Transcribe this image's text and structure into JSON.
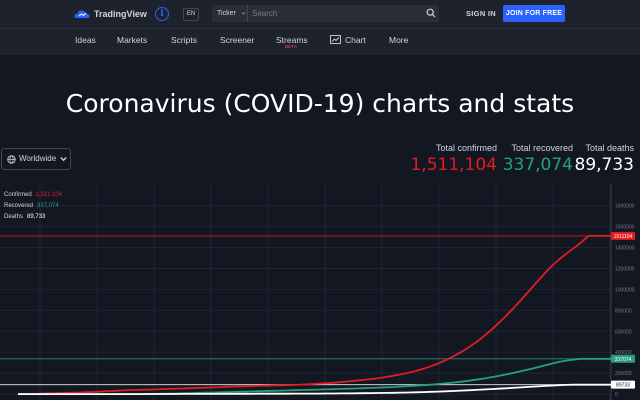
{
  "header": {
    "logo_text": "TradingView",
    "lang": "EN",
    "ticker_label": "Ticker",
    "search_placeholder": "Search",
    "sign_in": "SIGN IN",
    "join": "JOIN FOR FREE"
  },
  "nav": {
    "items": [
      "Ideas",
      "Markets",
      "Scripts",
      "Screener",
      "Streams",
      "Chart",
      "More"
    ],
    "streams_badge": "BETA"
  },
  "page_title": "Coronavirus (COVID-19) charts and stats",
  "region_select": "Worldwide",
  "stats": {
    "confirmed": {
      "label": "Total confirmed",
      "value": "1,511,104",
      "color": "#e31b23"
    },
    "recovered": {
      "label": "Total recovered",
      "value": "337,074",
      "color": "#26a17b"
    },
    "deaths": {
      "label": "Total deaths",
      "value": "89,733",
      "color": "#ffffff"
    }
  },
  "legend": [
    {
      "name": "Confirmed",
      "value": "1,511,104",
      "color": "#e31b23"
    },
    {
      "name": "Recovered",
      "value": "337,074",
      "color": "#26a17b"
    },
    {
      "name": "Deaths",
      "value": "89,733",
      "color": "#ffffff"
    }
  ],
  "chart_data": {
    "type": "line",
    "x": [
      1,
      2,
      3,
      4,
      5,
      6,
      7,
      8,
      9,
      10,
      11,
      12,
      13,
      14,
      15,
      16,
      17,
      18,
      19,
      20,
      21,
      22,
      23,
      24,
      25,
      26,
      27,
      28,
      29,
      30,
      31,
      32,
      33,
      34,
      35,
      36,
      37,
      38,
      39,
      40,
      41,
      42,
      43,
      44,
      45,
      46,
      47,
      48,
      49,
      50,
      51,
      52,
      53,
      54,
      55,
      56,
      57,
      58,
      59,
      60,
      61,
      62,
      63,
      64,
      65,
      66,
      67,
      68,
      69,
      70,
      71,
      72,
      73,
      74,
      75,
      76,
      77,
      78,
      79,
      80
    ],
    "series": [
      {
        "name": "Confirmed",
        "color": "#e31b23",
        "values": [
          0,
          500,
          2000,
          4000,
          6000,
          8000,
          10000,
          12000,
          14000,
          17000,
          20000,
          24000,
          28000,
          31000,
          35000,
          38000,
          40000,
          42000,
          44000,
          47000,
          49000,
          51000,
          53000,
          56000,
          59000,
          61000,
          64000,
          67000,
          70000,
          72000,
          74000,
          76000,
          78000,
          80000,
          82000,
          84000,
          86000,
          88000,
          91000,
          95000,
          99000,
          103000,
          108000,
          114000,
          121000,
          128000,
          135000,
          143000,
          152000,
          163000,
          175000,
          188000,
          203000,
          220000,
          241000,
          265000,
          293000,
          325000,
          360000,
          400000,
          445000,
          494000,
          549000,
          610000,
          676000,
          746000,
          820000,
          898000,
          979000,
          1060000,
          1140000,
          1215000,
          1282000,
          1340000,
          1393000,
          1447000,
          1511104,
          1511104,
          1511104,
          1511104
        ]
      },
      {
        "name": "Recovered",
        "color": "#26a17b",
        "values": [
          0,
          0,
          0,
          0,
          0,
          0,
          0,
          0,
          0,
          0,
          0,
          0,
          0,
          0,
          0,
          0,
          0,
          1000,
          2000,
          3000,
          4000,
          5000,
          7000,
          9000,
          11000,
          13000,
          15000,
          17000,
          19000,
          21000,
          23000,
          25000,
          27000,
          29000,
          31000,
          33000,
          35000,
          37000,
          39000,
          41000,
          43000,
          45000,
          47000,
          49000,
          51000,
          53000,
          56000,
          59000,
          62000,
          65000,
          68000,
          72000,
          76000,
          80000,
          85000,
          90000,
          96000,
          103000,
          110000,
          118000,
          127000,
          137000,
          148000,
          160000,
          173000,
          187000,
          202000,
          218000,
          235000,
          252000,
          270000,
          288000,
          306000,
          320000,
          329000,
          337074,
          337074,
          337074,
          337074,
          337074
        ]
      },
      {
        "name": "Deaths",
        "color": "#ffffff",
        "values": [
          0,
          0,
          0,
          0,
          0,
          0,
          0,
          0,
          0,
          0,
          0,
          0,
          0,
          0,
          0,
          0,
          100,
          200,
          400,
          600,
          800,
          1000,
          1200,
          1400,
          1600,
          1800,
          2000,
          2200,
          2400,
          2600,
          2800,
          3000,
          3200,
          3400,
          3500,
          3700,
          3900,
          4100,
          4300,
          4500,
          4800,
          5100,
          5500,
          6000,
          6600,
          7300,
          8100,
          9000,
          10000,
          11000,
          12300,
          13700,
          15300,
          17000,
          19000,
          21300,
          23800,
          26500,
          29500,
          32700,
          36000,
          39700,
          43500,
          47500,
          51500,
          55600,
          59800,
          64000,
          68300,
          72600,
          76800,
          80800,
          84300,
          87200,
          89733,
          89733,
          89733,
          89733,
          89733,
          89733
        ]
      }
    ],
    "ylim": [
      -200000,
      1950000
    ],
    "y_ticks": [
      -200000,
      0,
      200000,
      400000,
      600000,
      800000,
      1000000,
      1200000,
      1400000,
      1600000,
      1800000
    ],
    "price_labels": {
      "confirmed": "1511104",
      "recovered": "337074",
      "deaths": "89733"
    },
    "grid": true,
    "y_axis": "right"
  }
}
